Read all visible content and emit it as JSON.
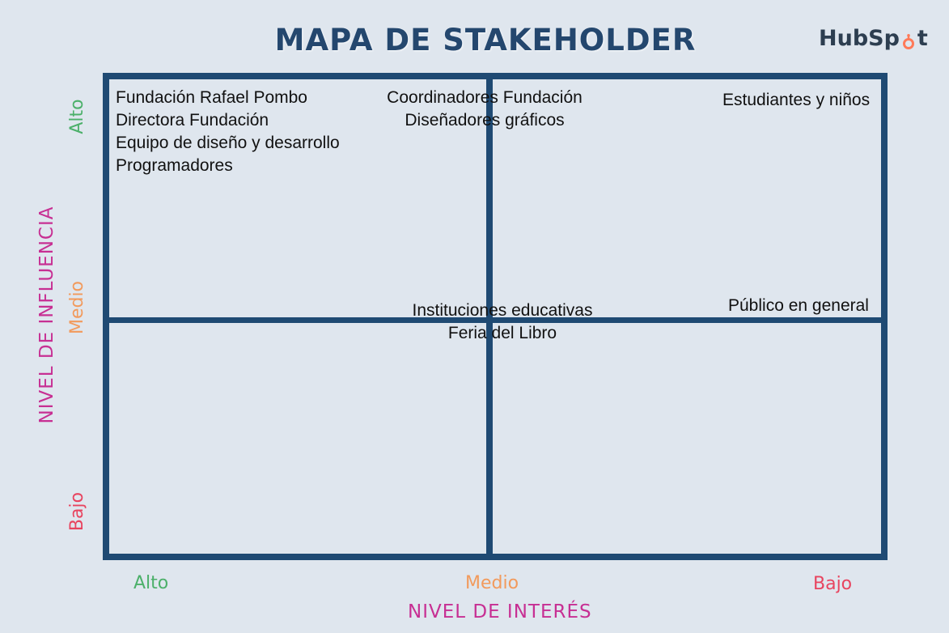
{
  "title": "MAPA DE STAKEHOLDER",
  "logo": {
    "text_left": "HubSp",
    "text_right": "t",
    "icon": "hubspot-sprocket-icon",
    "accent": "#ff7a59"
  },
  "y_axis": {
    "title": "NIVEL DE INFLUENCIA",
    "levels": {
      "high": "Alto",
      "mid": "Medio",
      "low": "Bajo"
    }
  },
  "x_axis": {
    "title": "NIVEL DE INTERÉS",
    "levels": {
      "high": "Alto",
      "mid": "Medio",
      "low": "Bajo"
    }
  },
  "cells": {
    "top_left": [
      "Fundación Rafael Pombo",
      "Directora Fundación",
      "Equipo de diseño y desarrollo",
      "Programadores"
    ],
    "top_mid": [
      "Coordinadores Fundación",
      "Diseñadores gráficos"
    ],
    "top_right": [
      "Estudiantes y niños"
    ],
    "mid_center": [
      "Instituciones educativas",
      "Feria del Libro"
    ],
    "mid_right": [
      "Público en general"
    ]
  },
  "colors": {
    "grid": "#1f4a73",
    "title": "#24476e",
    "high": "#4cb06a",
    "mid": "#f29a5c",
    "low": "#e8445f",
    "axis_title": "#c72f93"
  }
}
